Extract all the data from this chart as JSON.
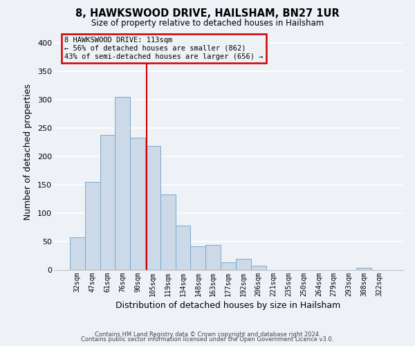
{
  "title": "8, HAWKSWOOD DRIVE, HAILSHAM, BN27 1UR",
  "subtitle": "Size of property relative to detached houses in Hailsham",
  "xlabel": "Distribution of detached houses by size in Hailsham",
  "ylabel": "Number of detached properties",
  "bar_color": "#ccd9e8",
  "bar_edge_color": "#7aaac8",
  "categories": [
    "32sqm",
    "47sqm",
    "61sqm",
    "76sqm",
    "90sqm",
    "105sqm",
    "119sqm",
    "134sqm",
    "148sqm",
    "163sqm",
    "177sqm",
    "192sqm",
    "206sqm",
    "221sqm",
    "235sqm",
    "250sqm",
    "264sqm",
    "279sqm",
    "293sqm",
    "308sqm",
    "322sqm"
  ],
  "values": [
    57,
    155,
    238,
    305,
    233,
    219,
    133,
    78,
    41,
    44,
    14,
    20,
    7,
    0,
    0,
    0,
    0,
    0,
    0,
    4,
    0
  ],
  "ylim": [
    0,
    415
  ],
  "yticks": [
    0,
    50,
    100,
    150,
    200,
    250,
    300,
    350,
    400
  ],
  "marker_color": "#cc0000",
  "annotation_title": "8 HAWKSWOOD DRIVE: 113sqm",
  "annotation_line1": "← 56% of detached houses are smaller (862)",
  "annotation_line2": "43% of semi-detached houses are larger (656) →",
  "annotation_box_edge": "#cc0000",
  "footer_line1": "Contains HM Land Registry data © Crown copyright and database right 2024.",
  "footer_line2": "Contains public sector information licensed under the Open Government Licence v3.0.",
  "background_color": "#eef2f7",
  "grid_color": "#ffffff"
}
